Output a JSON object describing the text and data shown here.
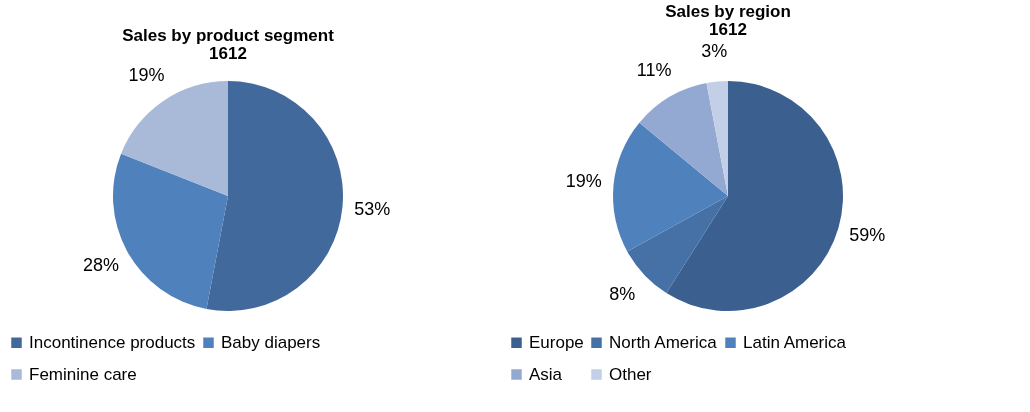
{
  "chart_data": [
    {
      "type": "pie",
      "title": "Sales by product segment",
      "subtitle": "1612",
      "categories": [
        "Incontinence products",
        "Baby diapers",
        "Feminine care"
      ],
      "values": [
        53,
        28,
        19
      ],
      "value_labels": [
        "53%",
        "28%",
        "19%"
      ],
      "colors": [
        "#41699b",
        "#4f81bd",
        "#a9b9d8"
      ],
      "legend": "bottom"
    },
    {
      "type": "pie",
      "title": "Sales by region",
      "subtitle": "1612",
      "categories": [
        "Europe",
        "North America",
        "Latin America",
        "Asia",
        "Other"
      ],
      "values": [
        59,
        8,
        19,
        11,
        3
      ],
      "value_labels": [
        "59%",
        "8%",
        "19%",
        "11%",
        "3%"
      ],
      "colors": [
        "#3b5f8e",
        "#4571a6",
        "#4f81bd",
        "#94a9d2",
        "#c3cfe6"
      ],
      "legend": "bottom"
    }
  ]
}
